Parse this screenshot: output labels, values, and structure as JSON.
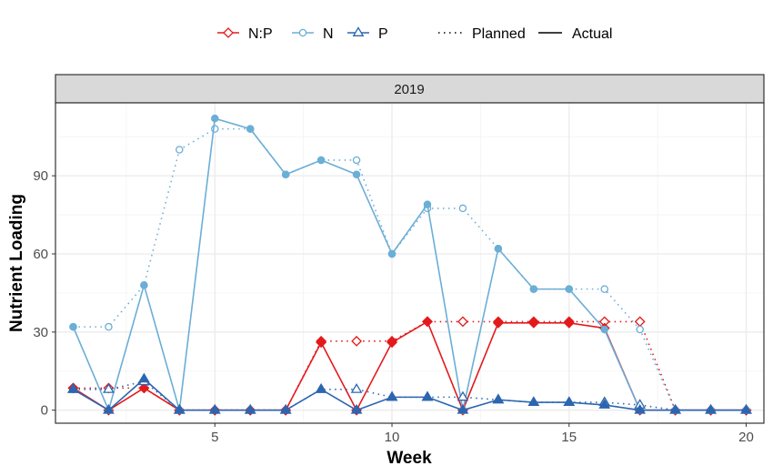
{
  "chart_data": {
    "type": "line",
    "facet": "2019",
    "xlabel": "Week",
    "ylabel": "Nutrient Loading",
    "xlim": [
      0.5,
      20.5
    ],
    "ylim": [
      -5,
      118
    ],
    "xticks": [
      5,
      10,
      15,
      20
    ],
    "yticks": [
      0,
      30,
      60,
      90
    ],
    "grid": true,
    "legend_position": "top",
    "legend": {
      "series": [
        "N:P",
        "N",
        "P"
      ],
      "linetypes": [
        "Planned",
        "Actual"
      ]
    },
    "colors": {
      "N:P": "#e31a1c",
      "N": "#6baed6",
      "P": "#2c66b0",
      "grid": "#ebebeb",
      "strip": "#d9d9d9"
    },
    "markers": {
      "N:P": "diamond",
      "N": "circle",
      "P": "triangle"
    },
    "series": [
      {
        "name": "N:P",
        "linetype": "Planned",
        "x": [
          1,
          2,
          3,
          4,
          5,
          6,
          7,
          8,
          9,
          10,
          11,
          12,
          13,
          14,
          15,
          16,
          17,
          18,
          19,
          20
        ],
        "y": [
          8.5,
          8.5,
          8.5,
          0,
          0,
          0,
          0,
          26.5,
          26.5,
          26.5,
          34,
          34,
          34,
          34,
          34,
          34,
          34,
          0,
          0,
          0
        ]
      },
      {
        "name": "N:P",
        "linetype": "Actual",
        "x": [
          1,
          2,
          3,
          4,
          5,
          6,
          7,
          8,
          9,
          10,
          11,
          12,
          13,
          14,
          15,
          16,
          17,
          18,
          19,
          20
        ],
        "y": [
          8.5,
          0,
          8.5,
          0,
          0,
          0,
          0,
          26,
          0,
          26,
          34,
          0,
          33.5,
          33.5,
          33.5,
          31.5,
          0,
          0,
          0,
          0
        ]
      },
      {
        "name": "N",
        "linetype": "Planned",
        "x": [
          1,
          2,
          3,
          4,
          5,
          6,
          7,
          8,
          9,
          10,
          11,
          12,
          13,
          14,
          15,
          16,
          17,
          18,
          19,
          20
        ],
        "y": [
          32,
          32,
          48,
          100,
          108,
          108,
          90.5,
          96,
          96,
          60,
          77.5,
          77.5,
          62,
          46.5,
          46.5,
          46.5,
          31,
          0,
          0,
          0
        ]
      },
      {
        "name": "N",
        "linetype": "Actual",
        "x": [
          1,
          2,
          3,
          4,
          5,
          6,
          7,
          8,
          9,
          10,
          11,
          12,
          13,
          14,
          15,
          16,
          17,
          18,
          19,
          20
        ],
        "y": [
          32,
          0,
          48,
          0,
          112,
          108,
          90.5,
          96,
          90.5,
          60,
          79,
          0,
          62,
          46.5,
          46.5,
          31,
          0,
          0,
          0,
          0
        ]
      },
      {
        "name": "P",
        "linetype": "Planned",
        "x": [
          1,
          2,
          3,
          4,
          5,
          6,
          7,
          8,
          9,
          10,
          11,
          12,
          13,
          14,
          15,
          16,
          17,
          18,
          19,
          20
        ],
        "y": [
          8,
          8,
          11,
          0,
          0,
          0,
          0,
          8,
          8,
          5,
          5,
          5,
          4,
          3,
          3,
          3,
          2,
          0,
          0,
          0
        ]
      },
      {
        "name": "P",
        "linetype": "Actual",
        "x": [
          1,
          2,
          3,
          4,
          5,
          6,
          7,
          8,
          9,
          10,
          11,
          12,
          13,
          14,
          15,
          16,
          17,
          18,
          19,
          20
        ],
        "y": [
          8,
          0,
          12,
          0,
          0,
          0,
          0,
          8,
          0,
          5,
          5,
          0,
          4,
          3,
          3,
          2,
          0,
          0,
          0,
          0
        ]
      }
    ]
  }
}
